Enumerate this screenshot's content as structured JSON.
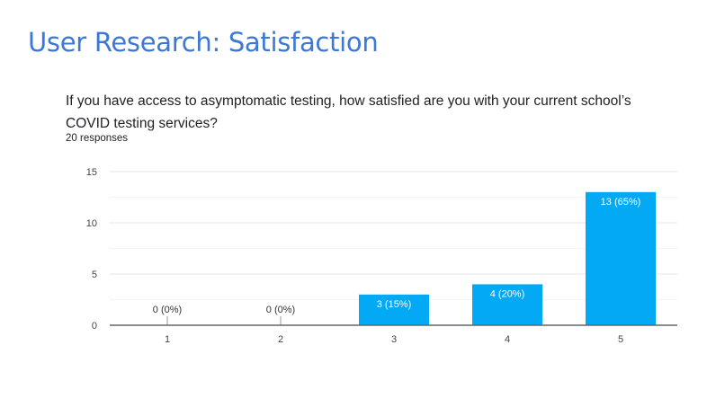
{
  "slide": {
    "title": "User Research: Satisfaction",
    "question": "If you have access to asymptomatic testing, how satisfied are you with your current school’s COVID testing services?",
    "responses": "20 responses"
  },
  "colors": {
    "title": "#3c78d8",
    "bar": "#03a9f4"
  },
  "chart_data": {
    "type": "bar",
    "categories": [
      "1",
      "2",
      "3",
      "4",
      "5"
    ],
    "values": [
      0,
      0,
      3,
      4,
      13
    ],
    "data_labels": [
      "0 (0%)",
      "0 (0%)",
      "3 (15%)",
      "4 (20%)",
      "13 (65%)"
    ],
    "ylim": [
      0,
      15
    ],
    "yticks": [
      0,
      5,
      10,
      15
    ],
    "grid": true,
    "xlabel": "",
    "ylabel": ""
  }
}
